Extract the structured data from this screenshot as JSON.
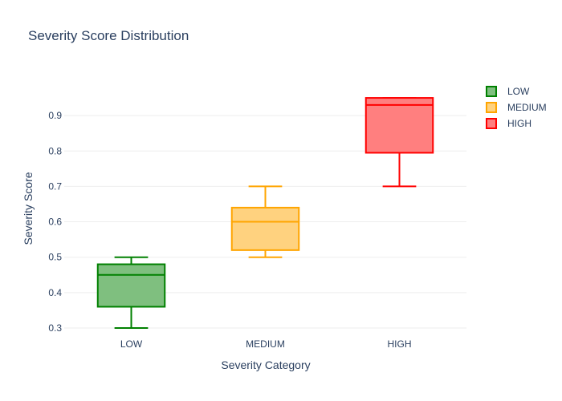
{
  "chart_data": {
    "type": "box",
    "title": "Severity Score Distribution",
    "xlabel": "Severity Category",
    "ylabel": "Severity Score",
    "categories": [
      "LOW",
      "MEDIUM",
      "HIGH"
    ],
    "ylim": [
      0.275,
      1.0
    ],
    "yticks": [
      0.3,
      0.4,
      0.5,
      0.6,
      0.7,
      0.8,
      0.9
    ],
    "grid": true,
    "legend_position": "top-right",
    "series": [
      {
        "name": "LOW",
        "color": "#008000",
        "fill": "#7fbf7f",
        "min": 0.3,
        "q1": 0.36,
        "median": 0.45,
        "q3": 0.48,
        "max": 0.5
      },
      {
        "name": "MEDIUM",
        "color": "#ffa500",
        "fill": "#ffd27f",
        "min": 0.5,
        "q1": 0.52,
        "median": 0.6,
        "q3": 0.64,
        "max": 0.7
      },
      {
        "name": "HIGH",
        "color": "#ff0000",
        "fill": "#ff7f7f",
        "min": 0.7,
        "q1": 0.795,
        "median": 0.93,
        "q3": 0.95,
        "max": 0.95
      }
    ]
  }
}
